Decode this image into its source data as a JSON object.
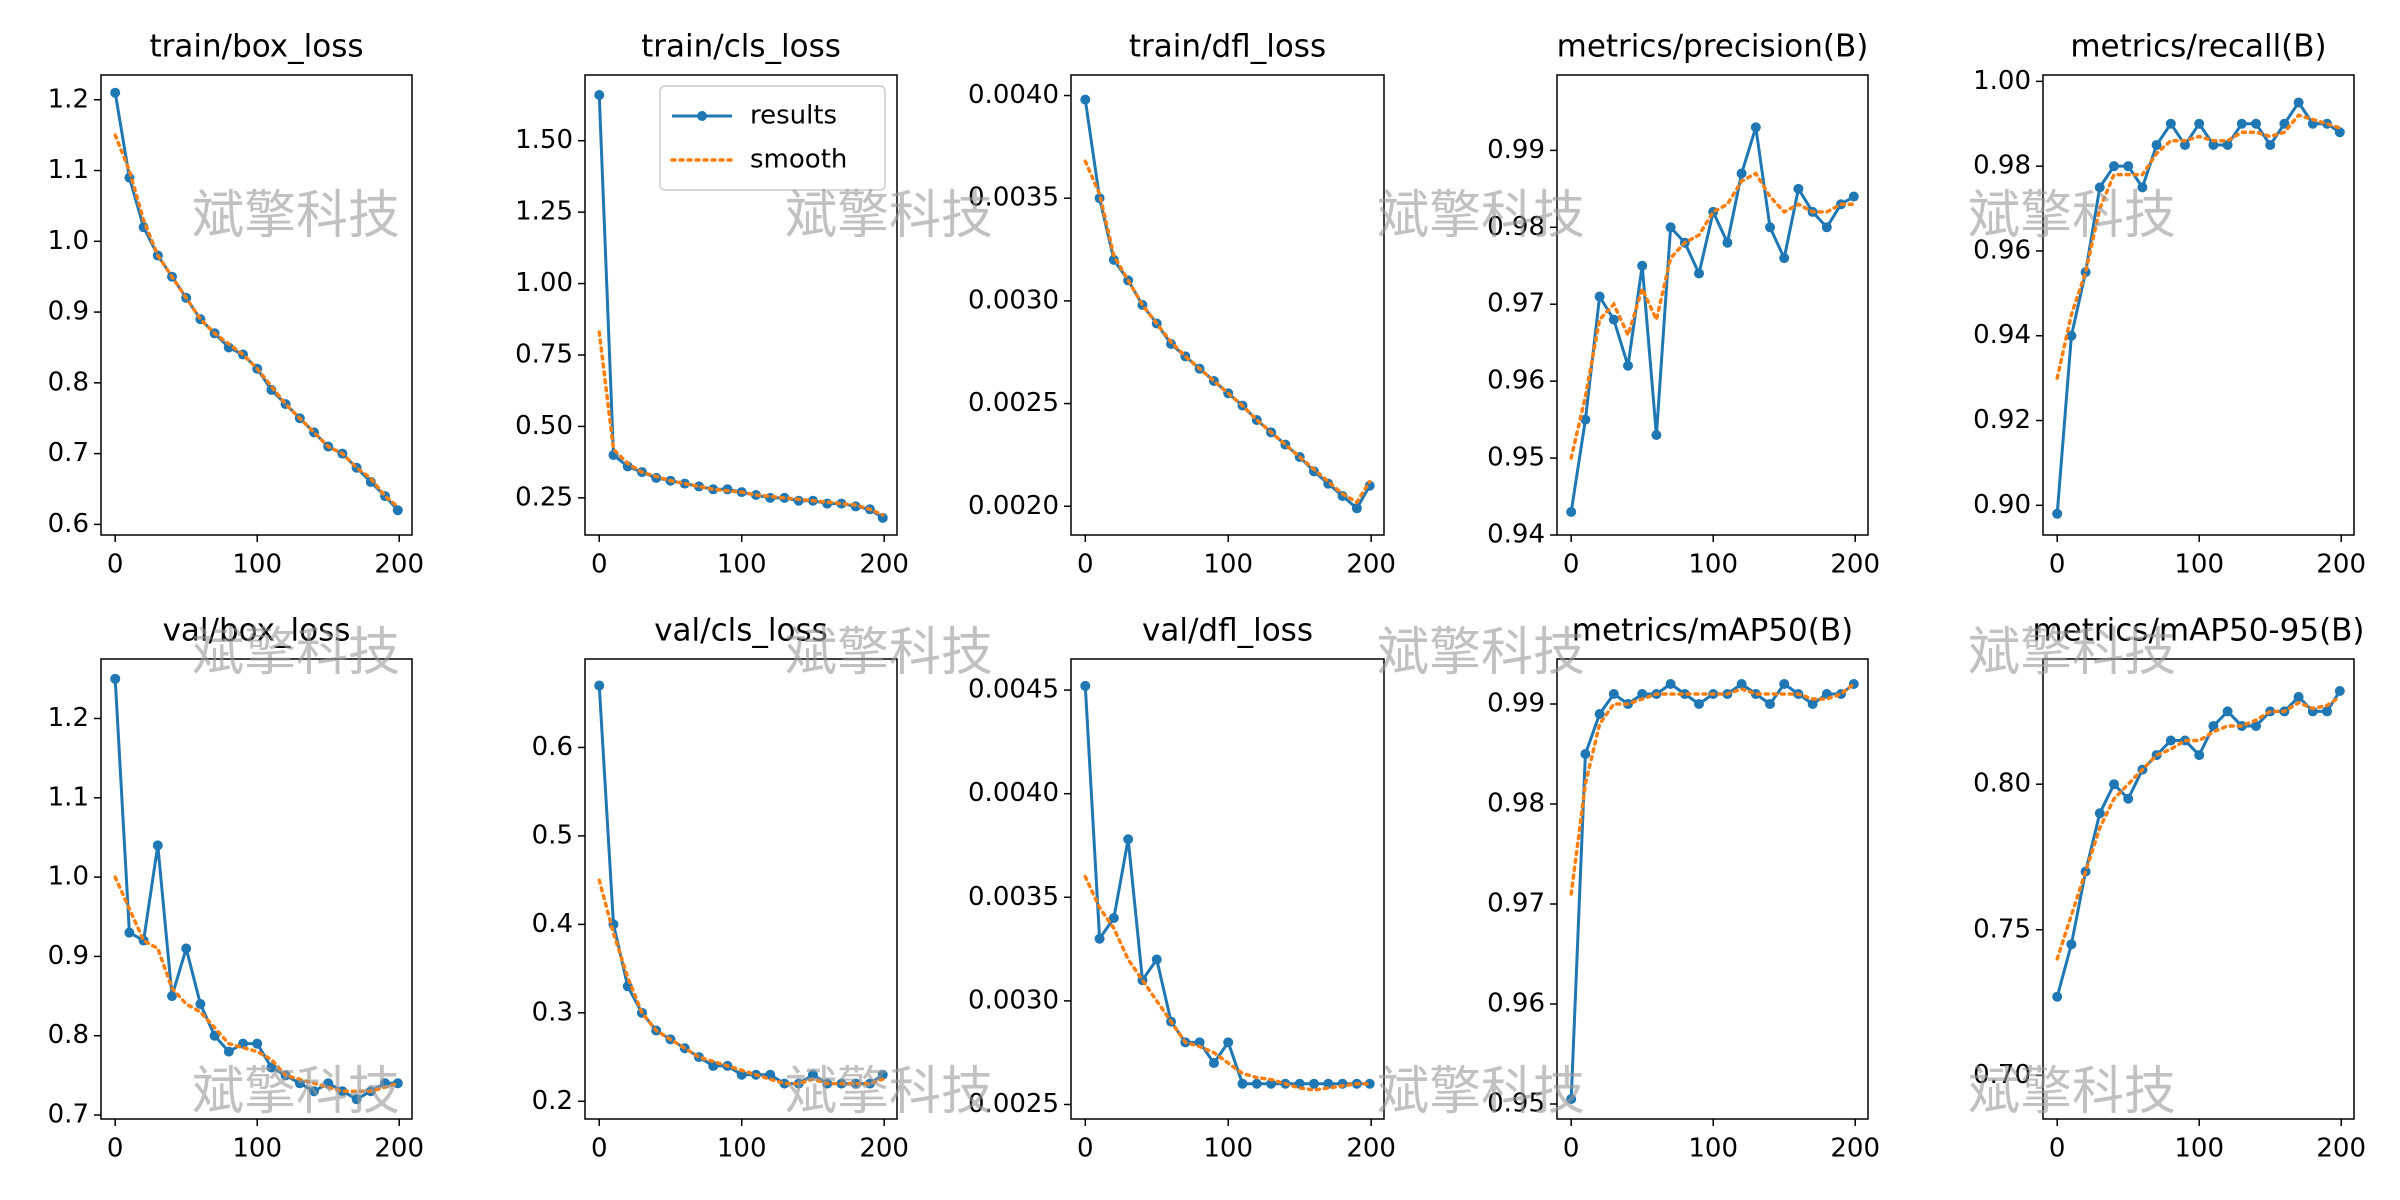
{
  "watermark": "斌擎科技",
  "chart_data": [
    {
      "type": "line",
      "title": "train/box_loss",
      "x": [
        0,
        10,
        20,
        30,
        40,
        50,
        60,
        70,
        80,
        90,
        100,
        110,
        120,
        130,
        140,
        150,
        160,
        170,
        180,
        190,
        199
      ],
      "xlim": [
        -10,
        209
      ],
      "xticks": [
        0,
        100,
        200
      ],
      "ylim": [
        0.585,
        1.235
      ],
      "yticks": [
        0.6,
        0.7,
        0.8,
        0.9,
        {
          "value": 1,
          "label": "1.0"
        },
        1.1,
        1.2
      ],
      "series": [
        {
          "color": "#1f77b4",
          "marker": "o",
          "linestyle": "solid",
          "values": [
            1.21,
            1.09,
            1.02,
            0.98,
            0.95,
            0.92,
            0.89,
            0.87,
            0.85,
            0.84,
            0.82,
            0.79,
            0.77,
            0.75,
            0.73,
            0.71,
            0.7,
            0.68,
            0.66,
            0.64,
            0.62
          ]
        },
        {
          "color": "#ff7f0e",
          "linestyle": "dotted",
          "values": [
            1.15,
            1.1,
            1.03,
            0.98,
            0.95,
            0.92,
            0.89,
            0.87,
            0.855,
            0.84,
            0.82,
            0.795,
            0.77,
            0.75,
            0.73,
            0.71,
            0.7,
            0.68,
            0.665,
            0.64,
            0.625
          ]
        }
      ]
    },
    {
      "type": "line",
      "title": "train/cls_loss",
      "x": [
        0,
        10,
        20,
        30,
        40,
        50,
        60,
        70,
        80,
        90,
        100,
        110,
        120,
        130,
        140,
        150,
        160,
        170,
        180,
        190,
        199
      ],
      "xlim": [
        -10,
        209
      ],
      "xticks": [
        0,
        100,
        200
      ],
      "ylim": [
        0.12,
        1.73
      ],
      "yticks": [
        0.25,
        {
          "value": 0.5,
          "label": "0.50"
        },
        0.75,
        {
          "value": 1,
          "label": "1.00"
        },
        1.25,
        {
          "value": 1.5,
          "label": "1.50"
        }
      ],
      "legend": "upper right",
      "series": [
        {
          "name": "results",
          "color": "#1f77b4",
          "marker": "o",
          "linestyle": "solid",
          "values": [
            1.66,
            0.4,
            0.36,
            0.34,
            0.32,
            0.31,
            0.3,
            0.29,
            0.28,
            0.28,
            0.27,
            0.26,
            0.25,
            0.25,
            0.24,
            0.24,
            0.23,
            0.23,
            0.22,
            0.21,
            0.18
          ]
        },
        {
          "name": "smooth",
          "color": "#ff7f0e",
          "linestyle": "dotted",
          "values": [
            0.83,
            0.42,
            0.37,
            0.34,
            0.325,
            0.31,
            0.3,
            0.29,
            0.28,
            0.275,
            0.27,
            0.26,
            0.255,
            0.25,
            0.245,
            0.24,
            0.235,
            0.23,
            0.225,
            0.21,
            0.19
          ]
        }
      ]
    },
    {
      "type": "line",
      "title": "train/dfl_loss",
      "x": [
        0,
        10,
        20,
        30,
        40,
        50,
        60,
        70,
        80,
        90,
        100,
        110,
        120,
        130,
        140,
        150,
        160,
        170,
        180,
        190,
        199
      ],
      "xlim": [
        -10,
        209
      ],
      "xticks": [
        0,
        100,
        200
      ],
      "ylim": [
        0.00186,
        0.0041
      ],
      "yticks": [
        {
          "value": 0.002,
          "label": "0.0020"
        },
        {
          "value": 0.0025,
          "label": "0.0025"
        },
        {
          "value": 0.003,
          "label": "0.0030"
        },
        {
          "value": 0.0035,
          "label": "0.0035"
        },
        {
          "value": 0.004,
          "label": "0.0040"
        }
      ],
      "series": [
        {
          "color": "#1f77b4",
          "marker": "o",
          "linestyle": "solid",
          "values": [
            0.00398,
            0.0035,
            0.0032,
            0.0031,
            0.00298,
            0.00289,
            0.00279,
            0.00273,
            0.00267,
            0.00261,
            0.00255,
            0.00249,
            0.00242,
            0.00236,
            0.0023,
            0.00224,
            0.00217,
            0.00211,
            0.00205,
            0.00199,
            0.0021
          ]
        },
        {
          "color": "#ff7f0e",
          "linestyle": "dotted",
          "values": [
            0.00368,
            0.00352,
            0.00322,
            0.0031,
            0.00298,
            0.00289,
            0.0028,
            0.00273,
            0.00267,
            0.00261,
            0.00255,
            0.00249,
            0.00242,
            0.00236,
            0.0023,
            0.00224,
            0.00218,
            0.00212,
            0.00206,
            0.00202,
            0.00212
          ]
        }
      ]
    },
    {
      "type": "line",
      "title": "metrics/precision(B)",
      "x": [
        0,
        10,
        20,
        30,
        40,
        50,
        60,
        70,
        80,
        90,
        100,
        110,
        120,
        130,
        140,
        150,
        160,
        170,
        180,
        190,
        199
      ],
      "xlim": [
        -10,
        209
      ],
      "xticks": [
        0,
        100,
        200
      ],
      "ylim": [
        0.94,
        0.9998
      ],
      "yticks": [
        0.94,
        0.95,
        0.96,
        0.97,
        0.98,
        0.99
      ],
      "series": [
        {
          "color": "#1f77b4",
          "marker": "o",
          "linestyle": "solid",
          "values": [
            0.943,
            0.955,
            0.971,
            0.968,
            0.962,
            0.975,
            0.953,
            0.98,
            0.978,
            0.974,
            0.982,
            0.978,
            0.987,
            0.993,
            0.98,
            0.976,
            0.985,
            0.982,
            0.98,
            0.983,
            0.984
          ]
        },
        {
          "color": "#ff7f0e",
          "linestyle": "dotted",
          "values": [
            0.95,
            0.958,
            0.968,
            0.97,
            0.966,
            0.972,
            0.968,
            0.976,
            0.978,
            0.979,
            0.982,
            0.983,
            0.986,
            0.987,
            0.984,
            0.982,
            0.983,
            0.982,
            0.982,
            0.983,
            0.983
          ]
        }
      ]
    },
    {
      "type": "line",
      "title": "metrics/recall(B)",
      "x": [
        0,
        10,
        20,
        30,
        40,
        50,
        60,
        70,
        80,
        90,
        100,
        110,
        120,
        130,
        140,
        150,
        160,
        170,
        180,
        190,
        199
      ],
      "xlim": [
        -10,
        209
      ],
      "xticks": [
        0,
        100,
        200
      ],
      "ylim": [
        0.893,
        1.0015
      ],
      "yticks": [
        {
          "value": 0.9,
          "label": "0.90"
        },
        0.92,
        0.94,
        0.96,
        0.98,
        {
          "value": 1,
          "label": "1.00"
        }
      ],
      "series": [
        {
          "color": "#1f77b4",
          "marker": "o",
          "linestyle": "solid",
          "values": [
            0.898,
            0.94,
            0.955,
            0.975,
            0.98,
            0.98,
            0.975,
            0.985,
            0.99,
            0.985,
            0.99,
            0.985,
            0.985,
            0.99,
            0.99,
            0.985,
            0.99,
            0.995,
            0.99,
            0.99,
            0.988
          ]
        },
        {
          "color": "#ff7f0e",
          "linestyle": "dotted",
          "values": [
            0.93,
            0.945,
            0.955,
            0.97,
            0.978,
            0.978,
            0.978,
            0.983,
            0.986,
            0.986,
            0.987,
            0.986,
            0.986,
            0.988,
            0.988,
            0.987,
            0.988,
            0.992,
            0.991,
            0.99,
            0.989
          ]
        }
      ]
    },
    {
      "type": "line",
      "title": "val/box_loss",
      "x": [
        0,
        10,
        20,
        30,
        40,
        50,
        60,
        70,
        80,
        90,
        100,
        110,
        120,
        130,
        140,
        150,
        160,
        170,
        180,
        190,
        199
      ],
      "xlim": [
        -10,
        209
      ],
      "xticks": [
        0,
        100,
        200
      ],
      "ylim": [
        0.695,
        1.275
      ],
      "yticks": [
        0.7,
        0.8,
        0.9,
        {
          "value": 1,
          "label": "1.0"
        },
        1.1,
        1.2
      ],
      "series": [
        {
          "color": "#1f77b4",
          "marker": "o",
          "linestyle": "solid",
          "values": [
            1.25,
            0.93,
            0.92,
            1.04,
            0.85,
            0.91,
            0.84,
            0.8,
            0.78,
            0.79,
            0.79,
            0.76,
            0.75,
            0.74,
            0.73,
            0.74,
            0.73,
            0.72,
            0.73,
            0.74,
            0.74
          ]
        },
        {
          "color": "#ff7f0e",
          "linestyle": "dotted",
          "values": [
            1.0,
            0.96,
            0.92,
            0.91,
            0.86,
            0.84,
            0.83,
            0.81,
            0.79,
            0.785,
            0.78,
            0.77,
            0.75,
            0.745,
            0.74,
            0.735,
            0.73,
            0.73,
            0.73,
            0.735,
            0.74
          ]
        }
      ]
    },
    {
      "type": "line",
      "title": "val/cls_loss",
      "x": [
        0,
        10,
        20,
        30,
        40,
        50,
        60,
        70,
        80,
        90,
        100,
        110,
        120,
        130,
        140,
        150,
        160,
        170,
        180,
        190,
        199
      ],
      "xlim": [
        -10,
        209
      ],
      "xticks": [
        0,
        100,
        200
      ],
      "ylim": [
        0.18,
        0.7
      ],
      "yticks": [
        0.2,
        0.3,
        0.4,
        0.5,
        0.6
      ],
      "series": [
        {
          "color": "#1f77b4",
          "marker": "o",
          "linestyle": "solid",
          "values": [
            0.67,
            0.4,
            0.33,
            0.3,
            0.28,
            0.27,
            0.26,
            0.25,
            0.24,
            0.24,
            0.23,
            0.23,
            0.23,
            0.22,
            0.22,
            0.23,
            0.22,
            0.22,
            0.22,
            0.22,
            0.23
          ]
        },
        {
          "color": "#ff7f0e",
          "linestyle": "dotted",
          "values": [
            0.45,
            0.39,
            0.34,
            0.3,
            0.28,
            0.27,
            0.26,
            0.25,
            0.245,
            0.24,
            0.235,
            0.23,
            0.225,
            0.22,
            0.22,
            0.225,
            0.22,
            0.22,
            0.22,
            0.22,
            0.225
          ]
        }
      ]
    },
    {
      "type": "line",
      "title": "val/dfl_loss",
      "x": [
        0,
        10,
        20,
        30,
        40,
        50,
        60,
        70,
        80,
        90,
        100,
        110,
        120,
        130,
        140,
        150,
        160,
        170,
        180,
        190,
        199
      ],
      "xlim": [
        -10,
        209
      ],
      "xticks": [
        0,
        100,
        200
      ],
      "ylim": [
        0.00243,
        0.00465
      ],
      "yticks": [
        {
          "value": 0.0025,
          "label": "0.0025"
        },
        {
          "value": 0.003,
          "label": "0.0030"
        },
        {
          "value": 0.0035,
          "label": "0.0035"
        },
        {
          "value": 0.004,
          "label": "0.0040"
        },
        {
          "value": 0.0045,
          "label": "0.0045"
        }
      ],
      "series": [
        {
          "color": "#1f77b4",
          "marker": "o",
          "linestyle": "solid",
          "values": [
            0.00452,
            0.0033,
            0.0034,
            0.00378,
            0.0031,
            0.0032,
            0.0029,
            0.0028,
            0.0028,
            0.0027,
            0.0028,
            0.0026,
            0.0026,
            0.0026,
            0.0026,
            0.0026,
            0.0026,
            0.0026,
            0.0026,
            0.0026,
            0.0026
          ]
        },
        {
          "color": "#ff7f0e",
          "linestyle": "dotted",
          "values": [
            0.0036,
            0.00345,
            0.00335,
            0.0032,
            0.0031,
            0.003,
            0.0029,
            0.0028,
            0.00278,
            0.00275,
            0.0027,
            0.00265,
            0.00263,
            0.00262,
            0.0026,
            0.00258,
            0.00257,
            0.00258,
            0.00259,
            0.0026,
            0.0026
          ]
        }
      ]
    },
    {
      "type": "line",
      "title": "metrics/mAP50(B)",
      "x": [
        0,
        10,
        20,
        30,
        40,
        50,
        60,
        70,
        80,
        90,
        100,
        110,
        120,
        130,
        140,
        150,
        160,
        170,
        180,
        190,
        199
      ],
      "xlim": [
        -10,
        209
      ],
      "xticks": [
        0,
        100,
        200
      ],
      "ylim": [
        0.9485,
        0.9945
      ],
      "yticks": [
        0.95,
        0.96,
        0.97,
        0.98,
        0.99
      ],
      "series": [
        {
          "color": "#1f77b4",
          "marker": "o",
          "linestyle": "solid",
          "values": [
            0.9505,
            0.985,
            0.989,
            0.991,
            0.99,
            0.991,
            0.991,
            0.992,
            0.991,
            0.99,
            0.991,
            0.991,
            0.992,
            0.991,
            0.99,
            0.992,
            0.991,
            0.99,
            0.991,
            0.991,
            0.992
          ]
        },
        {
          "color": "#ff7f0e",
          "linestyle": "dotted",
          "values": [
            0.971,
            0.982,
            0.988,
            0.99,
            0.99,
            0.9905,
            0.991,
            0.991,
            0.991,
            0.991,
            0.991,
            0.991,
            0.9915,
            0.991,
            0.991,
            0.991,
            0.991,
            0.9905,
            0.9905,
            0.991,
            0.992
          ]
        }
      ]
    },
    {
      "type": "line",
      "title": "metrics/mAP50-95(B)",
      "x": [
        0,
        10,
        20,
        30,
        40,
        50,
        60,
        70,
        80,
        90,
        100,
        110,
        120,
        130,
        140,
        150,
        160,
        170,
        180,
        190,
        199
      ],
      "xlim": [
        -10,
        209
      ],
      "xticks": [
        0,
        100,
        200
      ],
      "ylim": [
        0.685,
        0.843
      ],
      "yticks": [
        {
          "value": 0.7,
          "label": "0.70"
        },
        0.75,
        {
          "value": 0.8,
          "label": "0.80"
        }
      ],
      "series": [
        {
          "color": "#1f77b4",
          "marker": "o",
          "linestyle": "solid",
          "values": [
            0.727,
            0.745,
            0.77,
            0.79,
            0.8,
            0.795,
            0.805,
            0.81,
            0.815,
            0.815,
            0.81,
            0.82,
            0.825,
            0.82,
            0.82,
            0.825,
            0.825,
            0.83,
            0.825,
            0.825,
            0.832
          ]
        },
        {
          "color": "#ff7f0e",
          "linestyle": "dotted",
          "values": [
            0.74,
            0.755,
            0.77,
            0.785,
            0.795,
            0.8,
            0.805,
            0.81,
            0.812,
            0.815,
            0.815,
            0.818,
            0.82,
            0.82,
            0.822,
            0.825,
            0.825,
            0.828,
            0.826,
            0.827,
            0.83
          ]
        }
      ]
    }
  ]
}
